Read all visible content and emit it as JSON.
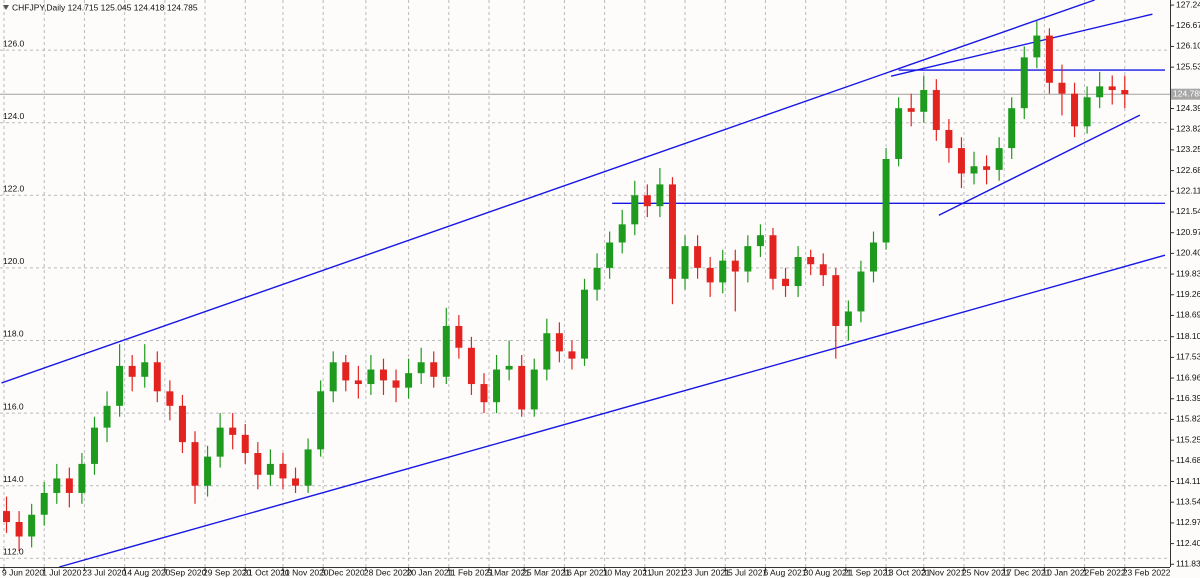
{
  "chart_data": {
    "type": "candlestick",
    "title": "CHFJPY,Daily 124.715 125.045 124.418 124.785",
    "x": [
      "8 Jun 2020",
      "15 Jun 2020",
      "22 Jun 2020",
      "29 Jun 2020",
      "6 Jul 2020",
      "13 Jul 2020",
      "20 Jul 2020",
      "27 Jul 2020",
      "3 Aug 2020",
      "10 Aug 2020",
      "17 Aug 2020",
      "24 Aug 2020",
      "31 Aug 2020",
      "7 Sep 2020",
      "14 Sep 2020",
      "21 Sep 2020",
      "28 Sep 2020",
      "5 Oct 2020",
      "12 Oct 2020",
      "19 Oct 2020",
      "26 Oct 2020",
      "2 Nov 2020",
      "9 Nov 2020",
      "16 Nov 2020",
      "23 Nov 2020",
      "30 Nov 2020",
      "7 Dec 2020",
      "14 Dec 2020",
      "21 Dec 2020",
      "28 Dec 2020",
      "4 Jan 2021",
      "11 Jan 2021",
      "18 Jan 2021",
      "25 Jan 2021",
      "1 Feb 2021",
      "8 Feb 2021",
      "15 Feb 2021",
      "22 Feb 2021",
      "1 Mar 2021",
      "8 Mar 2021",
      "15 Mar 2021",
      "22 Mar 2021",
      "29 Mar 2021",
      "5 Apr 2021",
      "12 Apr 2021",
      "19 Apr 2021",
      "26 Apr 2021",
      "3 May 2021",
      "10 May 2021",
      "17 May 2021",
      "24 May 2021",
      "31 May 2021",
      "7 Jun 2021",
      "14 Jun 2021",
      "21 Jun 2021",
      "28 Jun 2021",
      "5 Jul 2021",
      "12 Jul 2021",
      "19 Jul 2021",
      "26 Jul 2021",
      "2 Aug 2021",
      "9 Aug 2021",
      "16 Aug 2021",
      "23 Aug 2021",
      "30 Aug 2021",
      "6 Sep 2021",
      "13 Sep 2021",
      "20 Sep 2021",
      "27 Sep 2021",
      "4 Oct 2021",
      "11 Oct 2021",
      "18 Oct 2021",
      "25 Oct 2021",
      "1 Nov 2021",
      "8 Nov 2021",
      "15 Nov 2021",
      "22 Nov 2021",
      "29 Nov 2021",
      "6 Dec 2021",
      "13 Dec 2021",
      "20 Dec 2021",
      "27 Dec 2021",
      "3 Jan 2022",
      "10 Jan 2022",
      "17 Jan 2022",
      "24 Jan 2022",
      "31 Jan 2022",
      "7 Feb 2022",
      "14 Feb 2022",
      "21 Feb 2022"
    ],
    "open": [
      113.3,
      113.0,
      112.6,
      113.2,
      113.8,
      114.2,
      113.8,
      114.6,
      115.6,
      116.2,
      117.3,
      117.0,
      117.4,
      116.6,
      116.2,
      115.2,
      114.0,
      114.8,
      115.6,
      115.4,
      114.9,
      114.3,
      114.6,
      114.2,
      114.0,
      115.0,
      116.6,
      117.4,
      116.9,
      116.8,
      117.2,
      116.9,
      116.7,
      117.1,
      117.4,
      117.0,
      118.4,
      117.8,
      116.8,
      116.3,
      117.2,
      117.3,
      116.1,
      117.2,
      118.2,
      117.7,
      117.5,
      119.4,
      120.0,
      120.7,
      121.2,
      122.0,
      121.7,
      122.3,
      119.7,
      120.6,
      120.0,
      119.6,
      120.2,
      119.9,
      120.6,
      120.9,
      119.7,
      119.5,
      120.3,
      120.1,
      119.8,
      118.4,
      118.8,
      119.9,
      120.7,
      123.0,
      124.4,
      124.3,
      124.9,
      123.8,
      123.3,
      122.6,
      122.8,
      122.7,
      123.3,
      124.4,
      125.8,
      126.4,
      125.1,
      124.8,
      123.9,
      124.7,
      125.0,
      124.9
    ],
    "high": [
      113.7,
      113.3,
      113.5,
      114.1,
      114.6,
      114.5,
      114.9,
      115.9,
      116.6,
      117.9,
      117.6,
      117.9,
      117.7,
      116.9,
      116.5,
      115.5,
      115.1,
      116.0,
      116.0,
      115.7,
      115.2,
      115.0,
      114.9,
      114.5,
      115.3,
      116.9,
      117.7,
      117.6,
      117.3,
      117.6,
      117.5,
      117.2,
      117.5,
      117.8,
      117.7,
      118.9,
      118.7,
      118.1,
      117.1,
      117.6,
      118.0,
      117.6,
      117.5,
      118.6,
      118.5,
      118.0,
      119.7,
      120.4,
      121.0,
      121.6,
      122.4,
      122.3,
      122.75,
      122.5,
      120.9,
      120.9,
      120.3,
      120.5,
      120.5,
      120.9,
      121.2,
      121.1,
      120.0,
      120.6,
      120.5,
      120.4,
      120.0,
      119.1,
      120.2,
      121.0,
      123.3,
      124.7,
      124.8,
      125.3,
      125.2,
      124.1,
      123.6,
      123.2,
      123.1,
      123.6,
      124.7,
      126.1,
      126.8,
      126.6,
      125.6,
      125.1,
      125.0,
      125.4,
      125.3,
      125.3
    ],
    "low": [
      112.7,
      112.2,
      112.3,
      112.9,
      113.5,
      113.4,
      113.5,
      114.3,
      115.2,
      115.9,
      116.6,
      116.7,
      116.3,
      115.8,
      114.9,
      113.5,
      113.7,
      114.5,
      115.0,
      114.6,
      113.9,
      114.0,
      113.9,
      113.8,
      113.8,
      114.8,
      116.3,
      116.6,
      116.4,
      116.5,
      116.5,
      116.3,
      116.4,
      116.8,
      116.7,
      116.8,
      117.5,
      116.5,
      116.0,
      116.0,
      116.9,
      115.9,
      115.9,
      116.9,
      117.4,
      117.2,
      117.3,
      119.1,
      119.7,
      120.4,
      120.9,
      121.4,
      121.4,
      119.0,
      119.4,
      119.7,
      119.2,
      119.3,
      118.8,
      119.6,
      120.3,
      119.4,
      119.2,
      119.2,
      119.8,
      119.5,
      117.5,
      118.0,
      118.5,
      119.6,
      120.5,
      122.8,
      123.9,
      124.0,
      123.5,
      122.9,
      122.2,
      122.3,
      122.3,
      122.4,
      123.0,
      124.1,
      125.5,
      124.8,
      124.2,
      123.6,
      123.7,
      124.4,
      124.5,
      124.4
    ],
    "close": [
      113.0,
      112.6,
      113.2,
      113.8,
      114.2,
      113.8,
      114.6,
      115.6,
      116.2,
      117.3,
      117.0,
      117.4,
      116.6,
      116.2,
      115.2,
      114.0,
      114.8,
      115.6,
      115.4,
      114.9,
      114.3,
      114.6,
      114.2,
      114.0,
      115.0,
      116.6,
      117.4,
      116.9,
      116.8,
      117.2,
      116.9,
      116.7,
      117.1,
      117.4,
      117.0,
      118.4,
      117.8,
      116.8,
      116.3,
      117.2,
      117.3,
      116.1,
      117.2,
      118.2,
      117.7,
      117.5,
      119.4,
      120.0,
      120.7,
      121.2,
      122.0,
      121.7,
      122.3,
      119.7,
      120.6,
      120.0,
      119.6,
      120.2,
      119.9,
      120.6,
      120.9,
      119.7,
      119.5,
      120.3,
      120.1,
      119.8,
      118.4,
      118.8,
      119.9,
      120.7,
      123.0,
      124.4,
      124.3,
      124.9,
      123.8,
      123.3,
      122.6,
      122.8,
      122.7,
      123.3,
      124.4,
      125.8,
      126.4,
      125.1,
      124.8,
      123.9,
      124.7,
      125.0,
      124.9,
      124.785
    ],
    "up_color": "#1e9b1e",
    "down_color": "#e3231f",
    "xlim": [
      "8 Jun 2020",
      "17 Mar 2022"
    ],
    "xticks": [
      "9 Jun 2020",
      "1 Jul 2020",
      "23 Jul 2020",
      "14 Aug 2020",
      "7 Sep 2020",
      "29 Sep 2020",
      "21 Oct 2020",
      "11 Nov 2020",
      "3 Dec 2020",
      "28 Dec 2020",
      "20 Jan 2021",
      "11 Feb 2021",
      "5 Mar 2021",
      "25 Mar 2021",
      "16 Apr 2021",
      "10 May 2021",
      "1 Jun 2021",
      "23 Jun 2021",
      "15 Jul 2021",
      "6 Aug 2021",
      "30 Aug 2021",
      "21 Sep 2021",
      "13 Oct 2021",
      "3 Nov 2021",
      "25 Nov 2021",
      "17 Dec 2021",
      "10 Jan 2022",
      "1 Feb 2022",
      "23 Feb 2022"
    ],
    "ylim": [
      111.76,
      127.38
    ],
    "yticks": [
      {
        "value": 112,
        "label": "112.0"
      },
      {
        "value": 114,
        "label": "114.0"
      },
      {
        "value": 116,
        "label": "116.0"
      },
      {
        "value": 118,
        "label": "118.0"
      },
      {
        "value": 120,
        "label": "120.0"
      },
      {
        "value": 122,
        "label": "122.0"
      },
      {
        "value": 124,
        "label": "124.0"
      },
      {
        "value": 126,
        "label": "126.0"
      }
    ],
    "y2lim": [
      111.76,
      127.38
    ],
    "y2ticks": [
      {
        "value": 127.24,
        "label": "127.240"
      },
      126.67,
      {
        "value": 126.1,
        "label": "126.100"
      },
      {
        "value": 125.53,
        "label": "125.530"
      },
      {
        "value": 124.39,
        "label": "124.390"
      },
      {
        "value": 123.82,
        "label": "123.820"
      },
      123.25,
      {
        "value": 122.68,
        "label": "122.680"
      },
      122.11,
      {
        "value": 121.54,
        "label": "121.540"
      },
      {
        "value": 120.97,
        "label": "120.970"
      },
      {
        "value": 120.4,
        "label": "120.400"
      },
      {
        "value": 119.83,
        "label": "119.830"
      },
      {
        "value": 119.26,
        "label": "119.260"
      },
      {
        "value": 118.69,
        "label": "118.690"
      },
      118.105,
      117.535,
      116.965,
      116.395,
      115.825,
      115.255,
      114.685,
      114.115,
      113.545,
      112.975,
      112.405,
      111.835
    ],
    "grid": true,
    "last_price": 124.785,
    "trendlines": [
      {
        "color": "#1717e6",
        "x": [
          "8 Jun 2020",
          "7 Feb 2022"
        ],
        "y": [
          116.83,
          127.38
        ]
      },
      {
        "color": "#1717e6",
        "x": [
          "9 Jul 2020",
          "17 Mar 2022"
        ],
        "y": [
          111.76,
          120.35
        ]
      },
      {
        "color": "#1717e6",
        "x": [
          "15 Oct 2021",
          "10 Mar 2022"
        ],
        "y": [
          125.28,
          126.99
        ]
      },
      {
        "color": "#1717e6",
        "x": [
          "11 Nov 2021",
          "3 Mar 2022"
        ],
        "y": [
          121.45,
          124.21
        ]
      },
      {
        "color": "#1717e6",
        "x": [
          "13 May 2021",
          "17 Mar 2022"
        ],
        "y": [
          121.78,
          121.78
        ]
      },
      {
        "color": "#1717e6",
        "x": [
          "20 Oct 2021",
          "17 Mar 2022"
        ],
        "y": [
          125.45,
          125.45
        ]
      }
    ]
  }
}
